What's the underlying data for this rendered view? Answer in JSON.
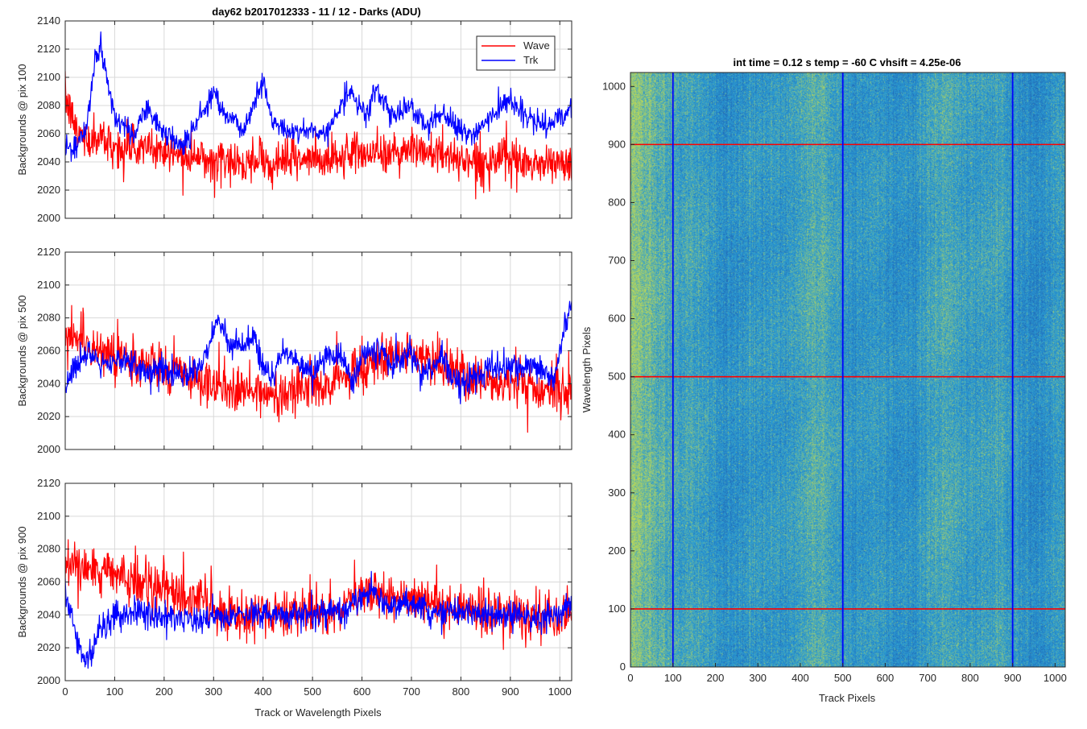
{
  "figure": {
    "title": "day62 b2017012333 - 11 / 12 - Darks (ADU)",
    "x_label": "Track or Wavelength Pixels"
  },
  "legend": {
    "wave": "Wave",
    "trk": "Trk",
    "placement": "top-right (top panel)"
  },
  "colors": {
    "wave": "#ff0000",
    "trk": "#0000ff",
    "grid": "#d9d9d9",
    "heat_base": "#2a9bd3",
    "heat_warm": "#b8d65a",
    "heat_cool": "#1f63b4"
  },
  "chart_data": [
    {
      "type": "line",
      "ylabel": "Backgrounds @ pix 100",
      "xlim": [
        0,
        1024
      ],
      "ylim": [
        2000,
        2140
      ],
      "xticks": [
        0,
        100,
        200,
        300,
        400,
        500,
        600,
        700,
        800,
        900,
        1000
      ],
      "yticks": [
        2000,
        2020,
        2040,
        2060,
        2080,
        2100,
        2120,
        2140
      ],
      "grid": true,
      "series": [
        {
          "name": "Wave",
          "color": "#ff0000",
          "x": [
            0,
            25,
            50,
            75,
            100,
            150,
            200,
            250,
            300,
            350,
            400,
            450,
            500,
            550,
            600,
            650,
            700,
            750,
            800,
            850,
            900,
            950,
            1000,
            1024
          ],
          "y": [
            2085,
            2060,
            2055,
            2058,
            2050,
            2050,
            2048,
            2045,
            2042,
            2040,
            2040,
            2042,
            2040,
            2042,
            2048,
            2045,
            2050,
            2045,
            2042,
            2040,
            2040,
            2038,
            2040,
            2035
          ]
        },
        {
          "name": "Trk",
          "color": "#0000ff",
          "x": [
            0,
            20,
            40,
            60,
            70,
            80,
            100,
            140,
            160,
            200,
            240,
            270,
            300,
            330,
            360,
            380,
            400,
            420,
            460,
            500,
            530,
            570,
            610,
            630,
            660,
            700,
            730,
            760,
            800,
            830,
            870,
            900,
            930,
            970,
            1000,
            1024
          ],
          "y": [
            2052,
            2048,
            2060,
            2110,
            2122,
            2108,
            2072,
            2058,
            2080,
            2060,
            2052,
            2070,
            2090,
            2072,
            2062,
            2080,
            2098,
            2068,
            2060,
            2064,
            2060,
            2090,
            2072,
            2095,
            2070,
            2082,
            2064,
            2075,
            2062,
            2060,
            2075,
            2086,
            2072,
            2064,
            2072,
            2078
          ]
        }
      ]
    },
    {
      "type": "line",
      "ylabel": "Backgrounds @ pix 500",
      "xlim": [
        0,
        1024
      ],
      "ylim": [
        2000,
        2120
      ],
      "xticks": [
        0,
        100,
        200,
        300,
        400,
        500,
        600,
        700,
        800,
        900,
        1000
      ],
      "yticks": [
        2000,
        2020,
        2040,
        2060,
        2080,
        2100,
        2120
      ],
      "grid": true,
      "series": [
        {
          "name": "Wave",
          "color": "#ff0000",
          "x": [
            0,
            25,
            50,
            100,
            150,
            200,
            250,
            300,
            350,
            400,
            450,
            500,
            550,
            600,
            650,
            700,
            750,
            800,
            850,
            900,
            950,
            1000,
            1024
          ],
          "y": [
            2070,
            2068,
            2062,
            2058,
            2052,
            2050,
            2044,
            2038,
            2035,
            2034,
            2036,
            2040,
            2042,
            2050,
            2055,
            2058,
            2052,
            2045,
            2042,
            2040,
            2038,
            2034,
            2035
          ]
        },
        {
          "name": "Trk",
          "color": "#0000ff",
          "x": [
            0,
            20,
            40,
            80,
            120,
            160,
            200,
            240,
            270,
            290,
            310,
            330,
            360,
            380,
            400,
            420,
            440,
            460,
            500,
            530,
            560,
            580,
            600,
            630,
            660,
            700,
            720,
            760,
            800,
            840,
            880,
            920,
            960,
            990,
            1010,
            1024
          ],
          "y": [
            2040,
            2048,
            2058,
            2050,
            2055,
            2048,
            2048,
            2044,
            2050,
            2062,
            2080,
            2066,
            2062,
            2072,
            2050,
            2044,
            2060,
            2055,
            2045,
            2058,
            2055,
            2042,
            2055,
            2062,
            2052,
            2058,
            2045,
            2055,
            2040,
            2046,
            2050,
            2048,
            2050,
            2042,
            2075,
            2090
          ]
        }
      ]
    },
    {
      "type": "line",
      "ylabel": "Backgrounds @ pix 900",
      "xlim": [
        0,
        1024
      ],
      "ylim": [
        2000,
        2120
      ],
      "xticks": [
        0,
        100,
        200,
        300,
        400,
        500,
        600,
        700,
        800,
        900,
        1000
      ],
      "yticks": [
        2000,
        2020,
        2040,
        2060,
        2080,
        2100,
        2120
      ],
      "grid": true,
      "series": [
        {
          "name": "Wave",
          "color": "#ff0000",
          "x": [
            0,
            25,
            50,
            100,
            150,
            200,
            250,
            300,
            350,
            400,
            450,
            500,
            550,
            600,
            650,
            700,
            750,
            800,
            850,
            900,
            950,
            1000,
            1024
          ],
          "y": [
            2070,
            2068,
            2066,
            2064,
            2062,
            2055,
            2050,
            2044,
            2040,
            2040,
            2040,
            2042,
            2044,
            2052,
            2050,
            2048,
            2046,
            2042,
            2042,
            2040,
            2038,
            2036,
            2040
          ]
        },
        {
          "name": "Trk",
          "color": "#0000ff",
          "x": [
            0,
            15,
            25,
            35,
            45,
            70,
            100,
            150,
            200,
            250,
            300,
            350,
            400,
            450,
            500,
            550,
            600,
            620,
            650,
            700,
            750,
            800,
            850,
            900,
            950,
            1000,
            1024
          ],
          "y": [
            2052,
            2036,
            2022,
            2014,
            2014,
            2028,
            2040,
            2042,
            2038,
            2038,
            2036,
            2040,
            2042,
            2040,
            2040,
            2042,
            2050,
            2055,
            2046,
            2048,
            2040,
            2042,
            2040,
            2040,
            2038,
            2040,
            2050
          ]
        }
      ]
    },
    {
      "type": "heatmap",
      "title": "int time = 0.12 s    temp = -60 C    vhsift = 4.25e-06",
      "xlabel": "Track Pixels",
      "ylabel": "Wavelength Pixels",
      "xlim": [
        0,
        1024
      ],
      "ylim": [
        0,
        1024
      ],
      "xticks": [
        0,
        100,
        200,
        300,
        400,
        500,
        600,
        700,
        800,
        900,
        1000
      ],
      "yticks": [
        0,
        100,
        200,
        300,
        400,
        500,
        600,
        700,
        800,
        900,
        1000
      ],
      "vertical_markers": {
        "color": "#0000ff",
        "x": [
          100,
          500,
          900
        ]
      },
      "horizontal_markers": {
        "color": "#ff0000",
        "y": [
          100,
          500,
          900
        ]
      }
    }
  ]
}
